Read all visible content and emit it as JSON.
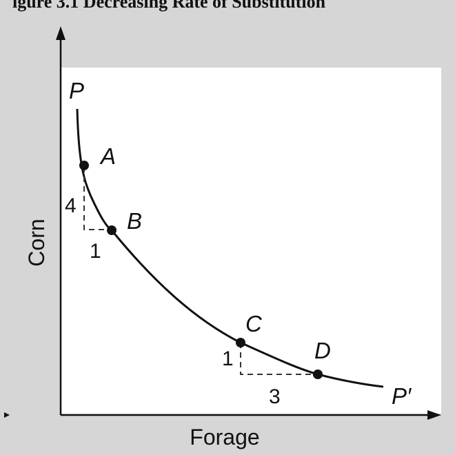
{
  "figure": {
    "title_fragment": "igure 3.1 Decreasing Rate of Substitution",
    "x_axis_label": "Forage",
    "y_axis_label": "Corn",
    "curve_start_label": "P",
    "curve_end_label": "P′",
    "points": [
      {
        "label": "A"
      },
      {
        "label": "B"
      },
      {
        "label": "C"
      },
      {
        "label": "D"
      }
    ],
    "triangles": [
      {
        "vertical_label": "4",
        "horizontal_label": "1"
      },
      {
        "vertical_label": "1",
        "horizontal_label": "3"
      }
    ]
  },
  "colors": {
    "background": "#d6d6d6",
    "plot_area": "#ffffff",
    "ink": "#111111"
  }
}
